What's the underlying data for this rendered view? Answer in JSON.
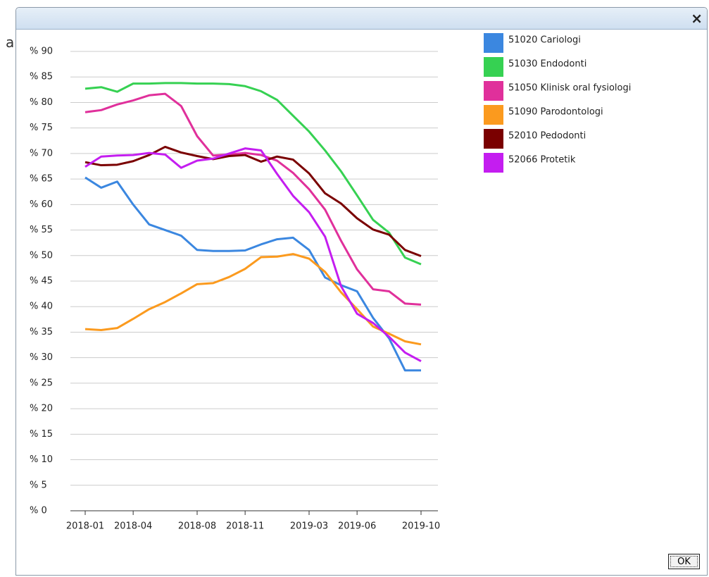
{
  "background": {
    "text": "a"
  },
  "dialog": {
    "close": "×",
    "ok": "OK"
  },
  "chart_data": {
    "type": "line",
    "x": [
      "2018-01",
      "2018-02",
      "2018-03",
      "2018-04",
      "2018-05",
      "2018-06",
      "2018-07",
      "2018-08",
      "2018-09",
      "2018-10",
      "2018-11",
      "2018-12",
      "2019-01",
      "2019-02",
      "2019-03",
      "2019-04",
      "2019-05",
      "2019-06",
      "2019-07",
      "2019-08",
      "2019-09",
      "2019-10"
    ],
    "xlim": [
      "2018-01",
      "2019-10"
    ],
    "xticks": [
      "2018-01",
      "2018-04",
      "2018-08",
      "2018-11",
      "2019-03",
      "2019-06",
      "2019-10"
    ],
    "ylim": [
      0,
      90
    ],
    "yticks": [
      {
        "value": 0,
        "label": "% 0"
      },
      {
        "value": 5,
        "label": "% 5"
      },
      {
        "value": 10,
        "label": "% 10"
      },
      {
        "value": 15,
        "label": "% 15"
      },
      {
        "value": 20,
        "label": "% 20"
      },
      {
        "value": 25,
        "label": "% 25"
      },
      {
        "value": 30,
        "label": "% 30"
      },
      {
        "value": 35,
        "label": "% 35"
      },
      {
        "value": 40,
        "label": "% 40"
      },
      {
        "value": 45,
        "label": "% 45"
      },
      {
        "value": 50,
        "label": "% 50"
      },
      {
        "value": 55,
        "label": "% 55"
      },
      {
        "value": 60,
        "label": "% 60"
      },
      {
        "value": 65,
        "label": "% 65"
      },
      {
        "value": 70,
        "label": "% 70"
      },
      {
        "value": 75,
        "label": "% 75"
      },
      {
        "value": 80,
        "label": "% 80"
      },
      {
        "value": 85,
        "label": "% 85"
      },
      {
        "value": 90,
        "label": "% 90"
      }
    ],
    "grid": true,
    "legend": "right",
    "series": [
      {
        "name": "51020 Cariologi",
        "color": "#3b87e0",
        "values": [
          65.3,
          63.3,
          64.5,
          60,
          56.1,
          55,
          53.9,
          51.1,
          50.9,
          50.9,
          51,
          52.2,
          53.2,
          53.5,
          51.1,
          45.7,
          44.2,
          43,
          37.8,
          33.8,
          27.5,
          27.5
        ]
      },
      {
        "name": "51030 Endodonti",
        "color": "#36d152",
        "values": [
          82.7,
          83,
          82.1,
          83.7,
          83.7,
          83.8,
          83.8,
          83.7,
          83.7,
          83.6,
          83.2,
          82.2,
          80.5,
          77.4,
          74.3,
          70.6,
          66.5,
          61.8,
          57,
          54.5,
          49.6,
          48.3
        ]
      },
      {
        "name": "51050 Klinisk oral fysiologi",
        "color": "#e0309b",
        "values": [
          78.1,
          78.5,
          79.6,
          80.4,
          81.4,
          81.7,
          79.3,
          73.4,
          69.6,
          69.8,
          70.1,
          69.7,
          68.6,
          66.2,
          63,
          59,
          52.9,
          47.3,
          43.4,
          43,
          40.6,
          40.4
        ]
      },
      {
        "name": "51090 Parodontologi",
        "color": "#fb9a1e",
        "values": [
          35.6,
          35.4,
          35.8,
          37.6,
          39.5,
          40.9,
          42.6,
          44.4,
          44.6,
          45.8,
          47.4,
          49.7,
          49.8,
          50.3,
          49.4,
          46.8,
          42.8,
          39.5,
          36.1,
          34.7,
          33.2,
          32.6
        ]
      },
      {
        "name": "52010 Pedodonti",
        "color": "#7a0000",
        "values": [
          68.3,
          67.7,
          67.8,
          68.5,
          69.7,
          71.3,
          70.2,
          69.5,
          68.9,
          69.5,
          69.7,
          68.4,
          69.4,
          68.8,
          66.1,
          62.2,
          60.2,
          57.3,
          55.1,
          54.1,
          51.1,
          49.9
        ]
      },
      {
        "name": "52066 Protetik",
        "color": "#c41df0",
        "values": [
          67.4,
          69.4,
          69.6,
          69.7,
          70.1,
          69.8,
          67.2,
          68.6,
          69,
          70,
          71,
          70.6,
          66,
          61.7,
          58.5,
          53.7,
          44,
          38.6,
          36.8,
          34.1,
          31,
          29.3
        ]
      }
    ]
  }
}
